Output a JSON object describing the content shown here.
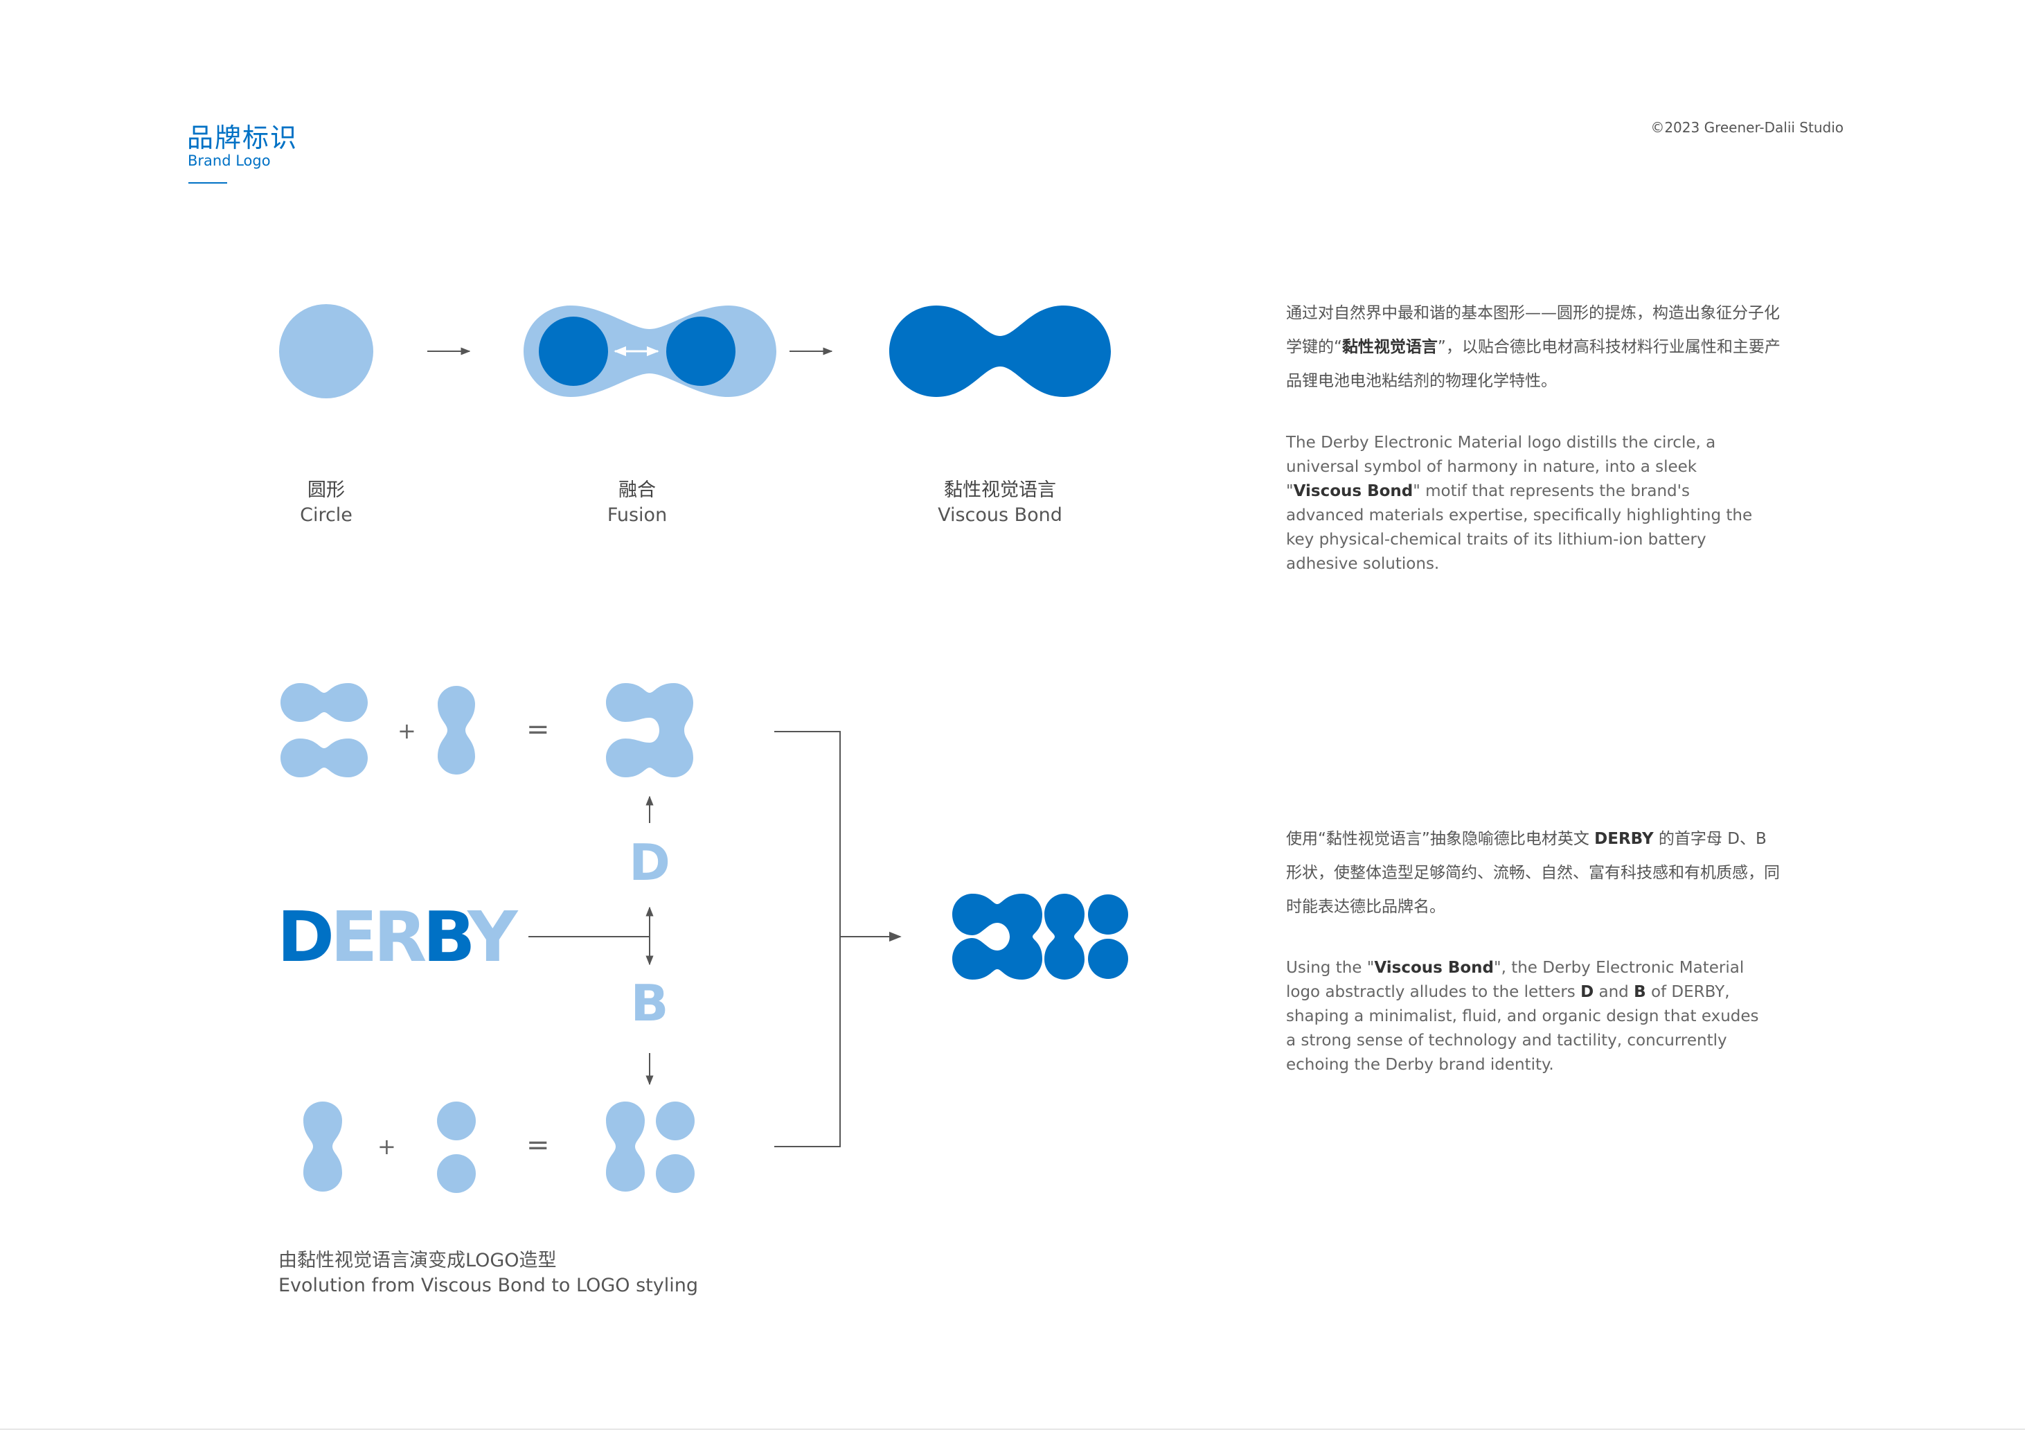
{
  "header": {
    "title_cn": "品牌标识",
    "title_en": "Brand Logo",
    "copyright": "©2023 Greener-Dalii Studio"
  },
  "colors": {
    "light_blue": "#9dc5ea",
    "mid_blue": "#7cb1e3",
    "dark_blue": "#0071c5",
    "line_gray": "#555555"
  },
  "steps": [
    {
      "cn": "圆形",
      "en": "Circle"
    },
    {
      "cn": "融合",
      "en": "Fusion"
    },
    {
      "cn": "黏性视觉语言",
      "en": "Viscous Bond"
    }
  ],
  "section1": {
    "cn_pre": "通过对自然界中最和谐的基本图形——圆形的提炼，构造出象征分子化学键的“",
    "cn_bold": "黏性视觉语言",
    "cn_post": "”，以贴合德比电材高科技材料行业属性和主要产品锂电池电池粘结剂的物理化学特性。",
    "en_pre": "The Derby Electronic Material logo distills the circle, a universal symbol of harmony in nature, into a sleek \"",
    "en_bold": "Viscous Bond",
    "en_post": "\" motif that represents the brand's advanced materials expertise, specifically highlighting the key physical-chemical traits of its lithium-ion battery adhesive solutions."
  },
  "section2": {
    "cn_pre": "使用“黏性视觉语言”抽象隐喻德比电材英文 ",
    "cn_bold1": "DERBY",
    "cn_mid": " 的首字母 D、B 形状，使整体造型足够简约、流畅、自然、富有科技感和有机质感，同时能表达德比品牌名。",
    "en_pre": "Using the \"",
    "en_bold1": "Viscous Bond",
    "en_mid1": "\", the Derby Electronic Material logo abstractly alludes to the letters ",
    "en_bold2": "D",
    "en_mid2": " and ",
    "en_bold3": "B",
    "en_post": " of DERBY, shaping a minimalist, fluid, and organic design that exudes a strong sense of technology and tactility, concurrently echoing the Derby brand identity."
  },
  "evolution": {
    "plus": "+",
    "equals": "=",
    "letter_d": "D",
    "letter_b": "B",
    "wordmark": [
      "D",
      "E",
      "R",
      "B",
      "Y"
    ],
    "caption_cn": "由黏性视觉语言演变成LOGO造型",
    "caption_en": "Evolution from Viscous Bond to LOGO styling"
  }
}
